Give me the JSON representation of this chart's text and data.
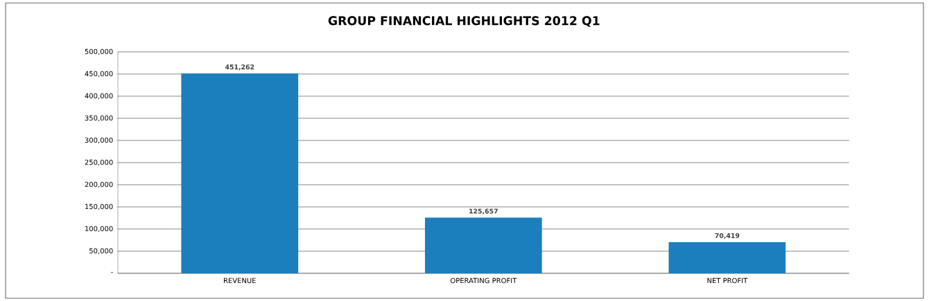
{
  "chart_data": {
    "type": "bar",
    "title": "GROUP FINANCIAL HIGHLIGHTS 2012 Q1",
    "categories": [
      "REVENUE",
      "OPERATING PROFIT",
      "NET PROFIT"
    ],
    "values": [
      451262,
      125657,
      70419
    ],
    "color": "#1b7fbd",
    "value_labels": [
      "451,262",
      "125,657",
      "70,419"
    ],
    "ylim": [
      0,
      500000
    ],
    "yticks": [
      {
        "value": 0,
        "label": "-"
      },
      {
        "value": 50000,
        "label": "50,000"
      },
      {
        "value": 100000,
        "label": "100,000"
      },
      {
        "value": 150000,
        "label": "150,000"
      },
      {
        "value": 200000,
        "label": "200,000"
      },
      {
        "value": 250000,
        "label": "250,000"
      },
      {
        "value": 300000,
        "label": "300,000"
      },
      {
        "value": 350000,
        "label": "350,000"
      },
      {
        "value": 400000,
        "label": "400,000"
      },
      {
        "value": 450000,
        "label": "450,000"
      },
      {
        "value": 500000,
        "label": "500,000"
      }
    ],
    "grid": "y"
  }
}
